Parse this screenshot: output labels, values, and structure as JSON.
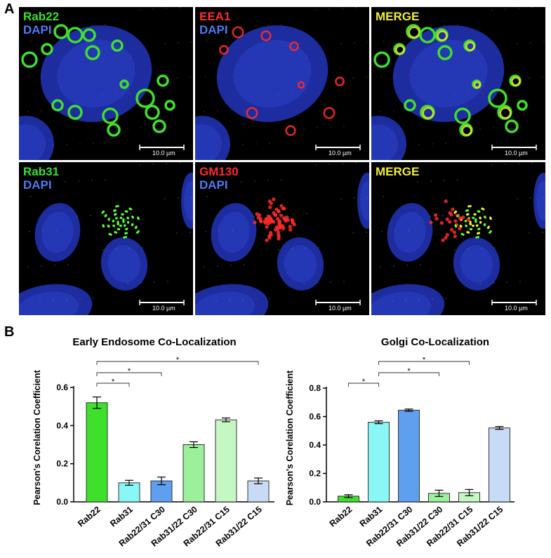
{
  "panels": {
    "a": "A",
    "b": "B"
  },
  "micrographs": [
    {
      "row": 0,
      "col": 0,
      "labels": [
        {
          "text": "Rab22",
          "color": "#34e22c"
        },
        {
          "text": "DAPI",
          "color": "#4d7bf5"
        }
      ],
      "scale": "10.0 µm",
      "kind": "rab22"
    },
    {
      "row": 0,
      "col": 1,
      "labels": [
        {
          "text": "EEA1",
          "color": "#ff2a2a"
        },
        {
          "text": "DAPI",
          "color": "#4d7bf5"
        }
      ],
      "scale": "10.0 µm",
      "kind": "eea1"
    },
    {
      "row": 0,
      "col": 2,
      "labels": [
        {
          "text": "MERGE",
          "color": "#f2ee33"
        }
      ],
      "scale": "10.0 µm",
      "kind": "merge1"
    },
    {
      "row": 1,
      "col": 0,
      "labels": [
        {
          "text": "Rab31",
          "color": "#34e22c"
        },
        {
          "text": "DAPI",
          "color": "#4d7bf5"
        }
      ],
      "scale": "10.0 µm",
      "kind": "rab31"
    },
    {
      "row": 1,
      "col": 1,
      "labels": [
        {
          "text": "GM130",
          "color": "#ff2a2a"
        },
        {
          "text": "DAPI",
          "color": "#4d7bf5"
        }
      ],
      "scale": "10.0 µm",
      "kind": "gm130"
    },
    {
      "row": 1,
      "col": 2,
      "labels": [
        {
          "text": "MERGE",
          "color": "#f2ee33"
        }
      ],
      "scale": "10.0 µm",
      "kind": "merge2"
    }
  ],
  "chart_data": [
    {
      "type": "bar",
      "title": "Early Endosome Co-Localization",
      "ylabel": "Pearson's Corelation Coefficient",
      "ylim": [
        0,
        0.6
      ],
      "yticks": [
        "0.0",
        "0.2",
        "0.4",
        "0.6"
      ],
      "categories": [
        "Rab22",
        "Rab31",
        "Rab22/31 C30",
        "Rab31/22 C30",
        "Rab22/31 C15",
        "Rab31/22 C15"
      ],
      "values": [
        0.52,
        0.1,
        0.11,
        0.3,
        0.43,
        0.11
      ],
      "errors": [
        0.03,
        0.013,
        0.02,
        0.015,
        0.01,
        0.015
      ],
      "colors": [
        "#3ee02b",
        "#8af7f7",
        "#5f9ff0",
        "#9cf09c",
        "#c5f7c5",
        "#c8dbf5"
      ],
      "significance": [
        {
          "from": 0,
          "to": 1,
          "label": "*"
        },
        {
          "from": 0,
          "to": 2,
          "label": "*"
        },
        {
          "from": 0,
          "to": 5,
          "label": "*"
        }
      ]
    },
    {
      "type": "bar",
      "title": "Golgi Co-Localization",
      "ylabel": "Pearson's Corelation Coefficient",
      "ylim": [
        0,
        0.8
      ],
      "yticks": [
        "0.0",
        "0.2",
        "0.4",
        "0.6",
        "0.8"
      ],
      "categories": [
        "Rab22",
        "Rab31",
        "Rab22/31 C30",
        "Rab31/22 C30",
        "Rab22/31 C15",
        "Rab31/22 C15"
      ],
      "values": [
        0.04,
        0.56,
        0.645,
        0.06,
        0.065,
        0.52
      ],
      "errors": [
        0.01,
        0.01,
        0.008,
        0.022,
        0.022,
        0.01
      ],
      "colors": [
        "#3ee02b",
        "#8af7f7",
        "#5f9ff0",
        "#9cf09c",
        "#c5f7c5",
        "#c8dbf5"
      ],
      "significance": [
        {
          "from": 0,
          "to": 1,
          "label": "*"
        },
        {
          "from": 1,
          "to": 3,
          "label": "*"
        },
        {
          "from": 1,
          "to": 4,
          "label": "*"
        }
      ]
    }
  ]
}
